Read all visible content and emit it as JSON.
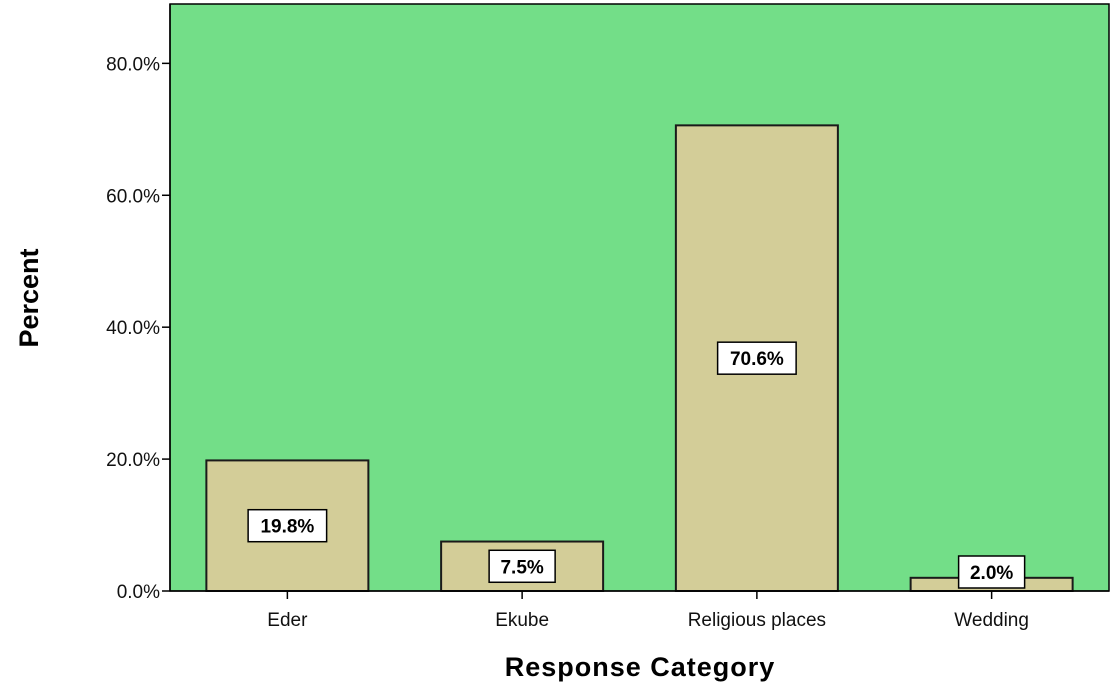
{
  "chart_data": {
    "type": "bar",
    "categories": [
      "Eder",
      "Ekube",
      "Religious places",
      "Wedding"
    ],
    "values": [
      19.8,
      7.5,
      70.6,
      2.0
    ],
    "data_labels": [
      "19.8%",
      "7.5%",
      "70.6%",
      "2.0%"
    ],
    "title": "",
    "xlabel": "Response Category",
    "ylabel": "Percent",
    "ylim": [
      0,
      89
    ],
    "yticks": [
      0,
      20,
      40,
      60,
      80
    ],
    "ytick_labels": [
      "0.0%",
      "20.0%",
      "40.0%",
      "60.0%",
      "80.0%"
    ],
    "grid": false,
    "colors": {
      "plot_background": "#73DE88",
      "bar_fill": "#D3CD98",
      "bar_stroke": "#1A1A1A",
      "axis": "#000000"
    }
  }
}
